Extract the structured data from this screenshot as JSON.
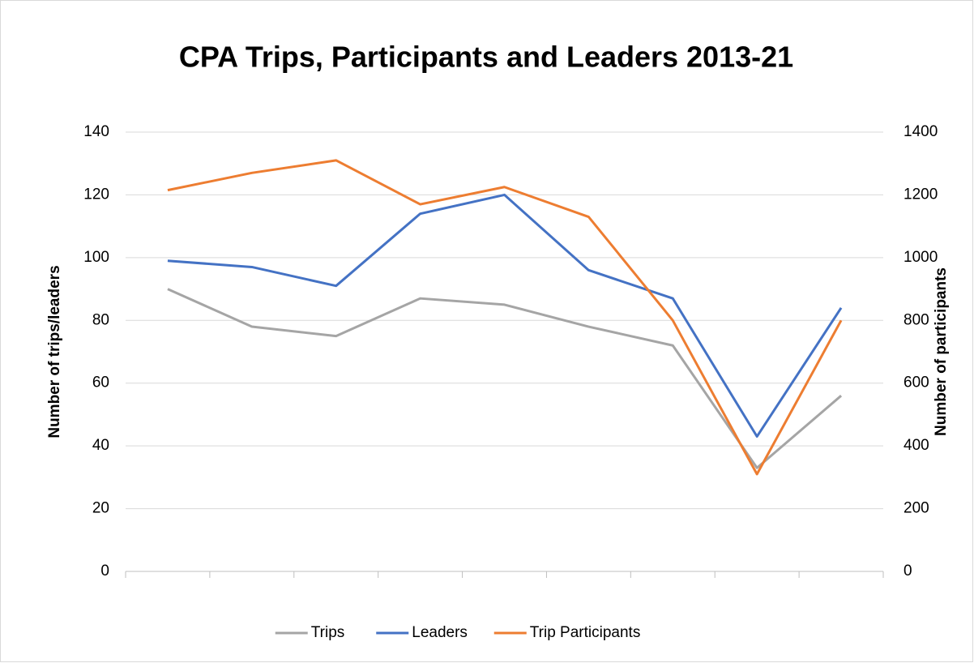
{
  "chart_data": {
    "type": "line",
    "title": "CPA Trips, Participants and Leaders 2013-21",
    "ylabel": "Number of trips/leaders",
    "y2label": "Number of participants",
    "categories": [
      null,
      null,
      null,
      null,
      null,
      null,
      null,
      null,
      null
    ],
    "series": [
      {
        "name": "Trips",
        "color": "#a5a5a5",
        "values": [
          90,
          78,
          75,
          87,
          85,
          78,
          72,
          33,
          56
        ]
      },
      {
        "name": "Leaders",
        "color": "#4472c4",
        "values": [
          99,
          97,
          91,
          114,
          120,
          96,
          87,
          43,
          84
        ]
      },
      {
        "name": "Trip Participants",
        "color": "#ed7d31",
        "axis": "y2",
        "values": [
          1215,
          1270,
          1310,
          1170,
          1225,
          1130,
          800,
          310,
          800
        ]
      }
    ],
    "ylim": [
      0,
      140
    ],
    "yticks": [
      0,
      20,
      40,
      60,
      80,
      100,
      120,
      140
    ],
    "y2lim": [
      0,
      1400
    ],
    "y2ticks": [
      0,
      200,
      400,
      600,
      800,
      1000,
      1200,
      1400
    ],
    "grid": true,
    "legend": "bottom"
  }
}
